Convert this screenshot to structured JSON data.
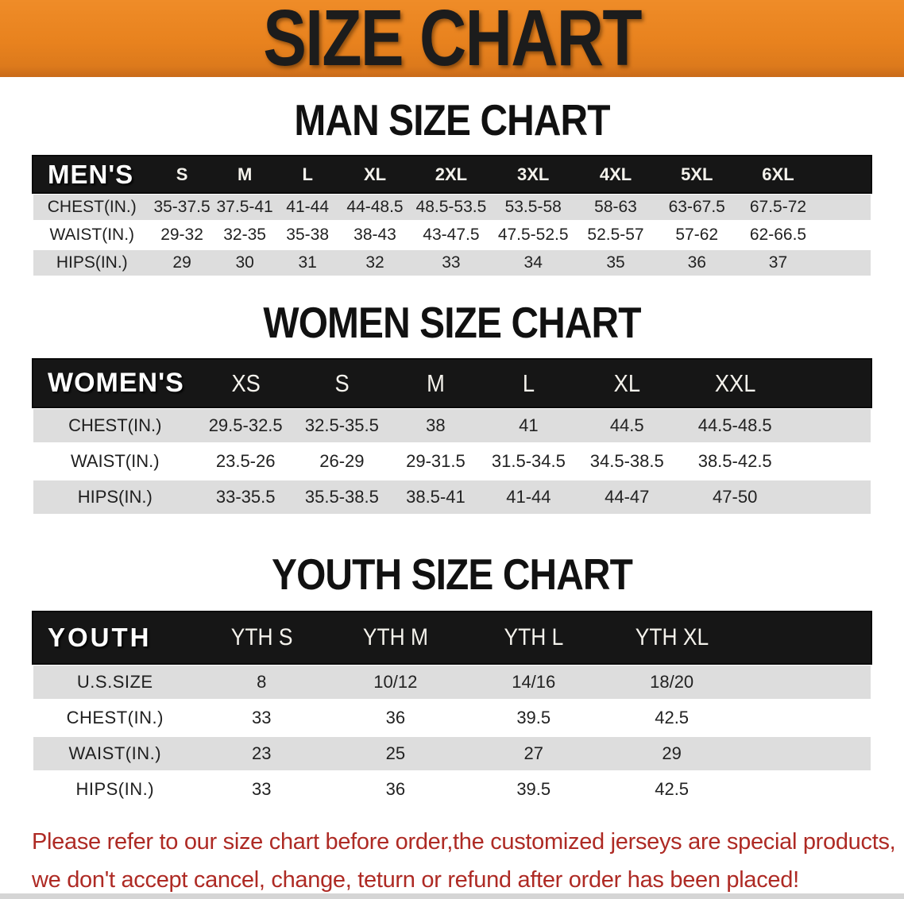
{
  "banner": {
    "title": "SIZE CHART"
  },
  "sections": [
    {
      "heading": "MAN SIZE CHART",
      "table": {
        "label": "MEN'S",
        "columns": [
          "S",
          "M",
          "L",
          "XL",
          "2XL",
          "3XL",
          "4XL",
          "5XL",
          "6XL"
        ],
        "rows": [
          {
            "label": "CHEST(IN.)",
            "values": [
              "35-37.5",
              "37.5-41",
              "41-44",
              "44-48.5",
              "48.5-53.5",
              "53.5-58",
              "58-63",
              "63-67.5",
              "67.5-72"
            ]
          },
          {
            "label": "WAIST(IN.)",
            "values": [
              "29-32",
              "32-35",
              "35-38",
              "38-43",
              "43-47.5",
              "47.5-52.5",
              "52.5-57",
              "57-62",
              "62-66.5"
            ]
          },
          {
            "label": "HIPS(IN.)",
            "values": [
              "29",
              "30",
              "31",
              "32",
              "33",
              "34",
              "35",
              "36",
              "37"
            ]
          }
        ]
      }
    },
    {
      "heading": "WOMEN SIZE CHART",
      "table": {
        "label": "WOMEN'S",
        "columns": [
          "XS",
          "S",
          "M",
          "L",
          "XL",
          "XXL"
        ],
        "rows": [
          {
            "label": "CHEST(IN.)",
            "values": [
              "29.5-32.5",
              "32.5-35.5",
              "38",
              "41",
              "44.5",
              "44.5-48.5"
            ]
          },
          {
            "label": "WAIST(IN.)",
            "values": [
              "23.5-26",
              "26-29",
              "29-31.5",
              "31.5-34.5",
              "34.5-38.5",
              "38.5-42.5"
            ]
          },
          {
            "label": "HIPS(IN.)",
            "values": [
              "33-35.5",
              "35.5-38.5",
              "38.5-41",
              "41-44",
              "44-47",
              "47-50"
            ]
          }
        ]
      }
    },
    {
      "heading": "YOUTH SIZE CHART",
      "table": {
        "label": "YOUTH",
        "columns": [
          "YTH S",
          "YTH M",
          "YTH L",
          "YTH XL"
        ],
        "rows": [
          {
            "label": "U.S.SIZE",
            "values": [
              "8",
              "10/12",
              "14/16",
              "18/20"
            ]
          },
          {
            "label": "CHEST(IN.)",
            "values": [
              "33",
              "36",
              "39.5",
              "42.5"
            ]
          },
          {
            "label": "WAIST(IN.)",
            "values": [
              "23",
              "25",
              "27",
              "29"
            ]
          },
          {
            "label": "HIPS(IN.)",
            "values": [
              "33",
              "36",
              "39.5",
              "42.5"
            ]
          }
        ]
      }
    }
  ],
  "disclaimer": {
    "line1": "Please refer to our size chart before order,the customized jerseys are special products,",
    "line2": "we don't accept cancel, change, teturn or refund after order has been placed!"
  },
  "colors": {
    "banner_orange": "#E8821E",
    "header_bar_black": "#161616",
    "row_gray": "#DDDDDD",
    "disclaimer_red": "#AE2A24"
  }
}
